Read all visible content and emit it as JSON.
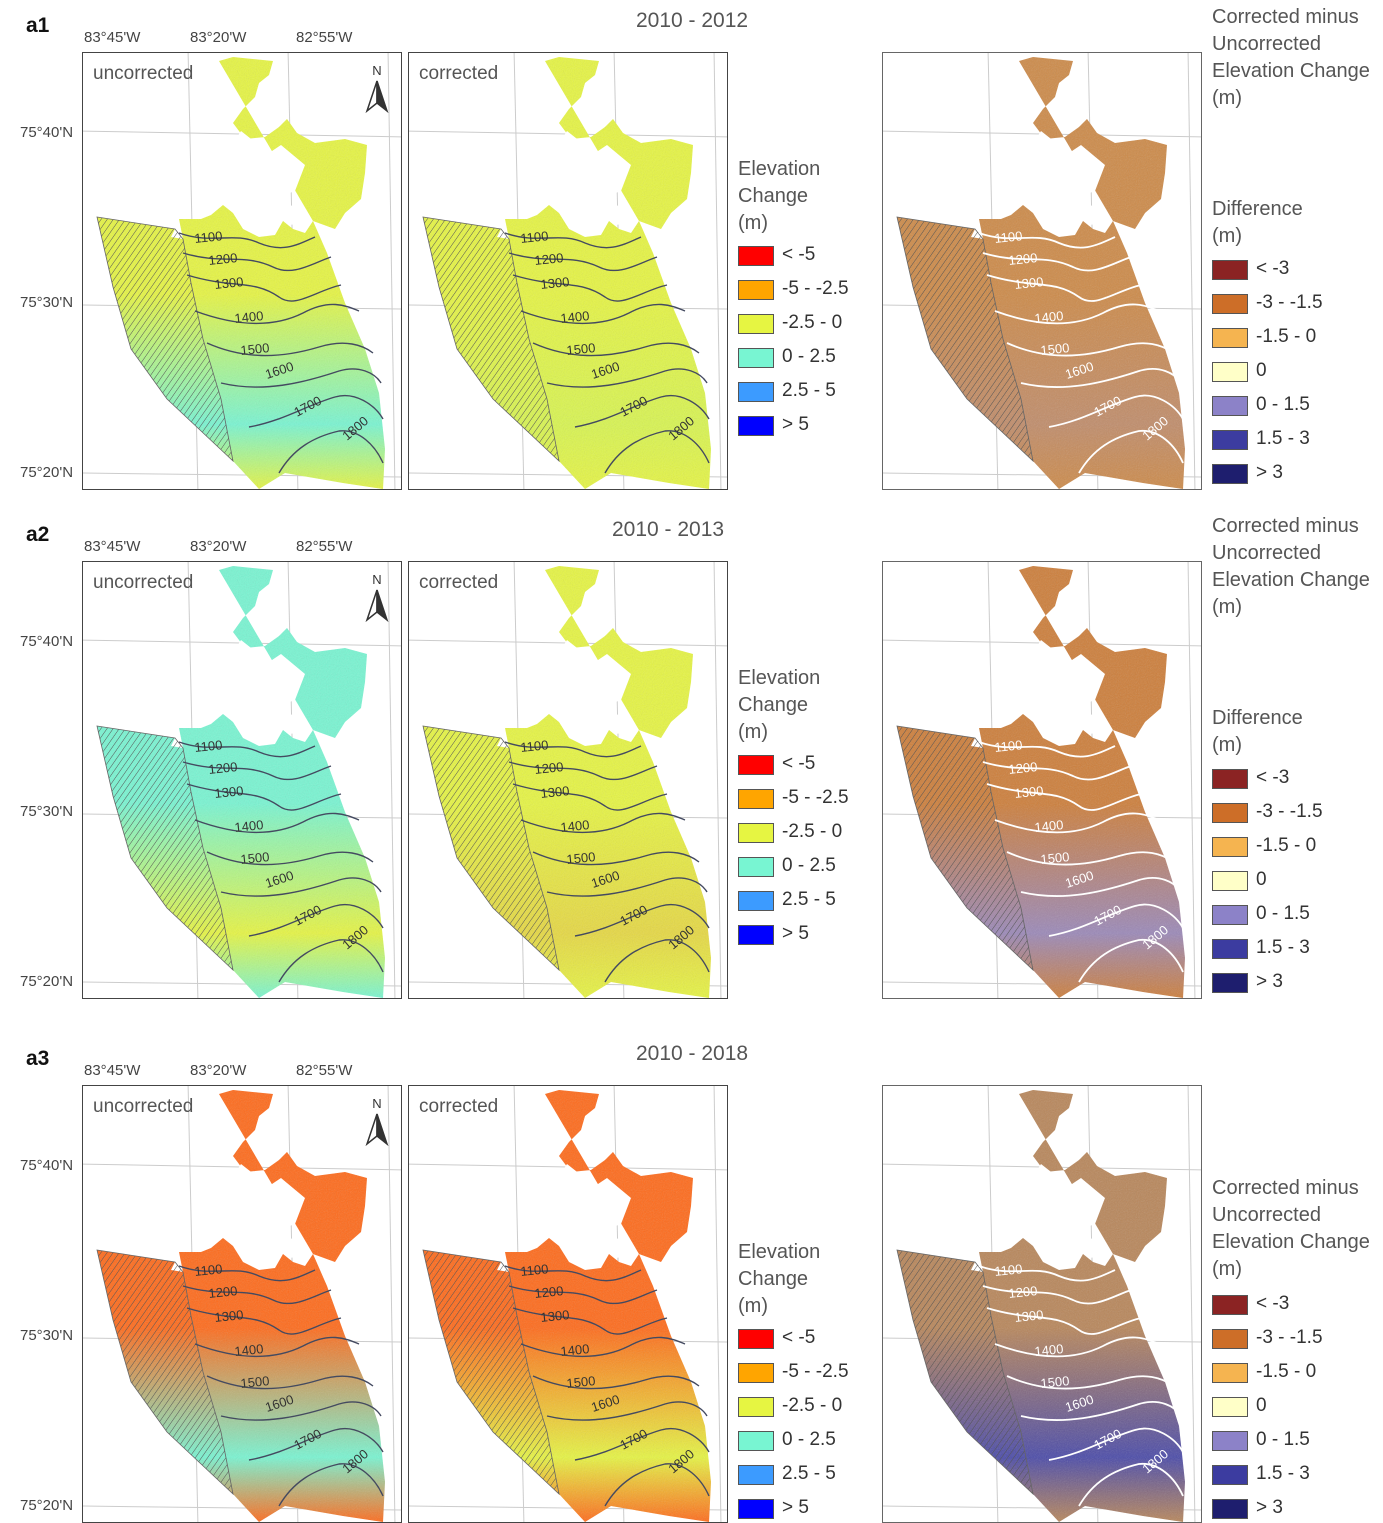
{
  "coordinates": {
    "lon_labels": [
      "83°45'W",
      "83°20'W",
      "82°55'W"
    ],
    "lat_labels": [
      "75°40'N",
      "75°30'N",
      "75°20'N"
    ]
  },
  "north_arrow": {
    "label": "N",
    "icon": "north-arrow-icon"
  },
  "contour_labels": [
    "1100",
    "1200",
    "1300",
    "1400",
    "1500",
    "1600",
    "1700",
    "1800"
  ],
  "elevation_legend": {
    "title_lines": [
      "Elevation",
      "Change",
      "(m)"
    ],
    "items": [
      {
        "label": "< -5",
        "color": "#ff0000"
      },
      {
        "label": "-5 - -2.5",
        "color": "#ffa500"
      },
      {
        "label": "-2.5 - 0",
        "color": "#e6f542"
      },
      {
        "label": "0 - 2.5",
        "color": "#78f5d2"
      },
      {
        "label": "2.5 - 5",
        "color": "#3c9bff"
      },
      {
        "label": "> 5",
        "color": "#0000ff"
      }
    ]
  },
  "difference_legend": {
    "header_lines": [
      "Corrected minus",
      "Uncorrected",
      "Elevation Change",
      "(m)"
    ],
    "title_lines": [
      "Difference",
      "(m)"
    ],
    "items": [
      {
        "label": "< -3",
        "color": "#8b2323"
      },
      {
        "label": "-3 - -1.5",
        "color": "#cd6e28"
      },
      {
        "label": "-1.5 - 0",
        "color": "#f5b450"
      },
      {
        "label": "0",
        "color": "#ffffc8"
      },
      {
        "label": "0 - 1.5",
        "color": "#8c82c8"
      },
      {
        "label": "1.5 - 3",
        "color": "#3c3ca0"
      },
      {
        "label": "> 3",
        "color": "#1e1e6e"
      }
    ]
  },
  "rows": [
    {
      "id": "a1",
      "period": "2010 - 2012",
      "panels": [
        "uncorrected",
        "corrected"
      ],
      "uncorrected_fill": [
        "#e6f542",
        "#78f5d2"
      ],
      "corrected_fill": [
        "#e6f542",
        "#d8f550"
      ],
      "difference_fill": [
        "#cd8a48",
        "#c08c6a"
      ]
    },
    {
      "id": "a2",
      "period": "2010 - 2013",
      "panels": [
        "uncorrected",
        "corrected"
      ],
      "uncorrected_fill": [
        "#78f5d2",
        "#e6f542"
      ],
      "corrected_fill": [
        "#e6f542",
        "#e6d842"
      ],
      "difference_fill": [
        "#cd7e3a",
        "#9a88b8"
      ]
    },
    {
      "id": "a3",
      "period": "2010 - 2018",
      "panels": [
        "uncorrected",
        "corrected"
      ],
      "uncorrected_fill": [
        "#ff6a1a",
        "#78f5d2"
      ],
      "corrected_fill": [
        "#ff6a1a",
        "#e6f542"
      ],
      "difference_fill": [
        "#b8865a",
        "#4a4aa8"
      ]
    }
  ]
}
